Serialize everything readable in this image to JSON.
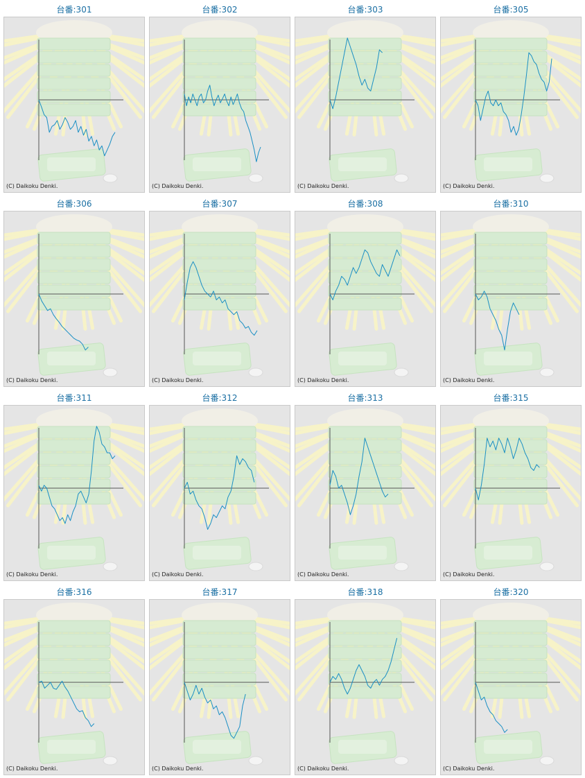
{
  "copyright": "(C) Daikoku Denki.",
  "line_color": "#1a8fc4",
  "chart_data": [
    {
      "type": "line",
      "title": "台番:301",
      "y": [
        0,
        -0.12,
        -0.25,
        -0.3,
        -0.55,
        -0.45,
        -0.42,
        -0.35,
        -0.5,
        -0.42,
        -0.3,
        -0.38,
        -0.5,
        -0.45,
        -0.35,
        -0.55,
        -0.45,
        -0.6,
        -0.5,
        -0.7,
        -0.62,
        -0.78,
        -0.68,
        -0.85,
        -0.78,
        -0.95,
        -0.85,
        -0.75,
        -0.62,
        -0.55
      ]
    },
    {
      "type": "line",
      "title": "台番:302",
      "y": [
        0.1,
        -0.1,
        0.05,
        -0.05,
        0.1,
        0.0,
        -0.1,
        0.05,
        0.1,
        -0.05,
        0.0,
        0.15,
        0.25,
        0.05,
        -0.1,
        0.0,
        0.08,
        -0.05,
        0.02,
        0.1,
        -0.02,
        -0.1,
        0.05,
        -0.08,
        0.0,
        0.1,
        -0.05,
        -0.15,
        -0.2,
        -0.35,
        -0.45,
        -0.55,
        -0.7,
        -0.85,
        -1.05,
        -0.9,
        -0.8
      ]
    },
    {
      "type": "line",
      "title": "台番:303",
      "y": [
        0,
        -0.15,
        0.05,
        0.3,
        0.55,
        0.8,
        1.05,
        0.9,
        0.75,
        0.6,
        0.4,
        0.25,
        0.35,
        0.2,
        0.15,
        0.35,
        0.55,
        0.85,
        0.8
      ]
    },
    {
      "type": "line",
      "title": "台番:305",
      "y": [
        0,
        -0.1,
        -0.35,
        -0.15,
        0.05,
        0.15,
        -0.05,
        -0.1,
        0.0,
        -0.1,
        -0.05,
        -0.2,
        -0.25,
        -0.35,
        -0.55,
        -0.45,
        -0.6,
        -0.5,
        -0.25,
        0.05,
        0.4,
        0.8,
        0.75,
        0.65,
        0.6,
        0.45,
        0.35,
        0.3,
        0.15,
        0.3,
        0.7
      ]
    },
    {
      "type": "line",
      "title": "台番:306",
      "y": [
        0,
        -0.12,
        -0.2,
        -0.28,
        -0.25,
        -0.35,
        -0.42,
        -0.48,
        -0.55,
        -0.6,
        -0.65,
        -0.7,
        -0.75,
        -0.78,
        -0.8,
        -0.85,
        -0.95,
        -0.9
      ]
    },
    {
      "type": "line",
      "title": "台番:307",
      "y": [
        -0.1,
        0.2,
        0.45,
        0.55,
        0.45,
        0.3,
        0.15,
        0.05,
        0.0,
        -0.05,
        0.05,
        -0.1,
        -0.05,
        -0.15,
        -0.1,
        -0.25,
        -0.3,
        -0.35,
        -0.3,
        -0.45,
        -0.5,
        -0.58,
        -0.55,
        -0.65,
        -0.7,
        -0.62
      ]
    },
    {
      "type": "line",
      "title": "台番:308",
      "y": [
        0,
        -0.1,
        0.05,
        0.15,
        0.3,
        0.25,
        0.15,
        0.3,
        0.45,
        0.35,
        0.45,
        0.6,
        0.75,
        0.7,
        0.55,
        0.45,
        0.35,
        0.3,
        0.5,
        0.4,
        0.3,
        0.45,
        0.6,
        0.75,
        0.65
      ]
    },
    {
      "type": "line",
      "title": "台番:310",
      "y": [
        0,
        -0.1,
        -0.05,
        0.05,
        -0.05,
        -0.25,
        -0.35,
        -0.45,
        -0.6,
        -0.7,
        -0.95,
        -0.6,
        -0.3,
        -0.15,
        -0.25,
        -0.35
      ]
    },
    {
      "type": "line",
      "title": "台番:311",
      "y": [
        0.05,
        -0.05,
        0.05,
        0.0,
        -0.15,
        -0.3,
        -0.35,
        -0.45,
        -0.55,
        -0.5,
        -0.6,
        -0.45,
        -0.55,
        -0.4,
        -0.3,
        -0.1,
        -0.05,
        -0.15,
        -0.25,
        -0.1,
        0.3,
        0.8,
        1.05,
        0.95,
        0.75,
        0.7,
        0.6,
        0.6,
        0.5,
        0.55
      ]
    },
    {
      "type": "line",
      "title": "台番:312",
      "y": [
        0,
        0.1,
        -0.1,
        -0.05,
        -0.2,
        -0.3,
        -0.35,
        -0.5,
        -0.7,
        -0.6,
        -0.45,
        -0.5,
        -0.4,
        -0.3,
        -0.35,
        -0.15,
        -0.05,
        0.2,
        0.55,
        0.4,
        0.5,
        0.45,
        0.35,
        0.3,
        0.1
      ]
    },
    {
      "type": "line",
      "title": "台番:313",
      "y": [
        0.05,
        0.3,
        0.2,
        0.0,
        0.05,
        -0.1,
        -0.25,
        -0.45,
        -0.3,
        -0.1,
        0.2,
        0.45,
        0.85,
        0.7,
        0.55,
        0.4,
        0.25,
        0.1,
        -0.05,
        -0.15,
        -0.1
      ]
    },
    {
      "type": "line",
      "title": "台番:315",
      "y": [
        0,
        -0.2,
        0.05,
        0.4,
        0.85,
        0.7,
        0.8,
        0.65,
        0.85,
        0.75,
        0.6,
        0.85,
        0.7,
        0.5,
        0.65,
        0.85,
        0.75,
        0.6,
        0.5,
        0.35,
        0.3,
        0.4,
        0.35
      ]
    },
    {
      "type": "line",
      "title": "台番:316",
      "y": [
        0,
        0.02,
        -0.1,
        -0.05,
        0.0,
        -0.1,
        -0.12,
        -0.05,
        0.02,
        -0.08,
        -0.15,
        -0.25,
        -0.35,
        -0.45,
        -0.5,
        -0.48,
        -0.6,
        -0.65,
        -0.75,
        -0.7
      ]
    },
    {
      "type": "line",
      "title": "台番:317",
      "y": [
        0,
        -0.15,
        -0.3,
        -0.2,
        -0.05,
        -0.2,
        -0.1,
        -0.25,
        -0.35,
        -0.3,
        -0.45,
        -0.4,
        -0.55,
        -0.5,
        -0.6,
        -0.75,
        -0.9,
        -0.95,
        -0.85,
        -0.75,
        -0.4,
        -0.2
      ]
    },
    {
      "type": "line",
      "title": "台番:318",
      "y": [
        0,
        0.1,
        0.05,
        0.15,
        0.05,
        -0.1,
        -0.2,
        -0.1,
        0.05,
        0.2,
        0.3,
        0.2,
        0.1,
        -0.05,
        -0.1,
        0.0,
        0.05,
        -0.05,
        0.05,
        0.1,
        0.2,
        0.35,
        0.55,
        0.75
      ]
    },
    {
      "type": "line",
      "title": "台番:320",
      "y": [
        0,
        -0.15,
        -0.3,
        -0.25,
        -0.4,
        -0.5,
        -0.55,
        -0.65,
        -0.7,
        -0.75,
        -0.85,
        -0.8
      ]
    }
  ]
}
